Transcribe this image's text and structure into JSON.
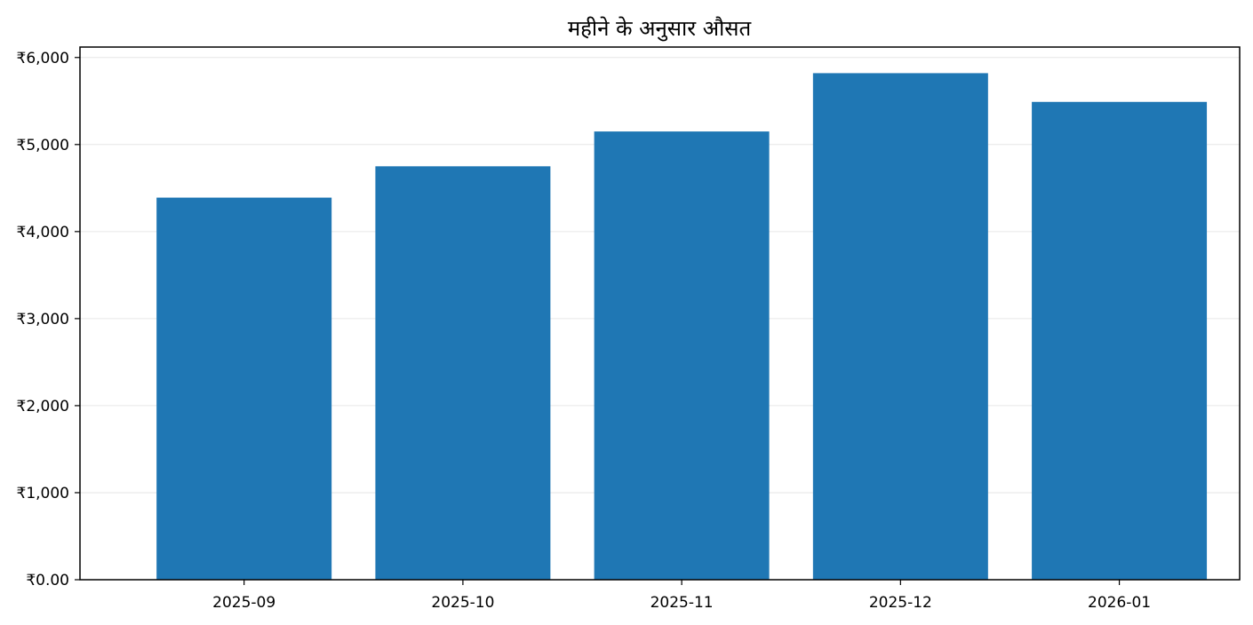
{
  "chart_data": {
    "type": "bar",
    "title": "महीने के अनुसार औसत",
    "xlabel": "",
    "ylabel": "",
    "categories": [
      "2025-09",
      "2025-10",
      "2025-11",
      "2025-12",
      "2026-01"
    ],
    "values": [
      4390,
      4750,
      5150,
      5820,
      5490
    ],
    "ylim": [
      0,
      6120
    ],
    "yticks": [
      0,
      1000,
      2000,
      3000,
      4000,
      5000,
      6000
    ],
    "ytick_labels": [
      "₹0.00",
      "₹1,000",
      "₹2,000",
      "₹3,000",
      "₹4,000",
      "₹5,000",
      "₹6,000"
    ],
    "bar_color": "#1f77b4",
    "grid": "horizontal",
    "legend": "none"
  }
}
